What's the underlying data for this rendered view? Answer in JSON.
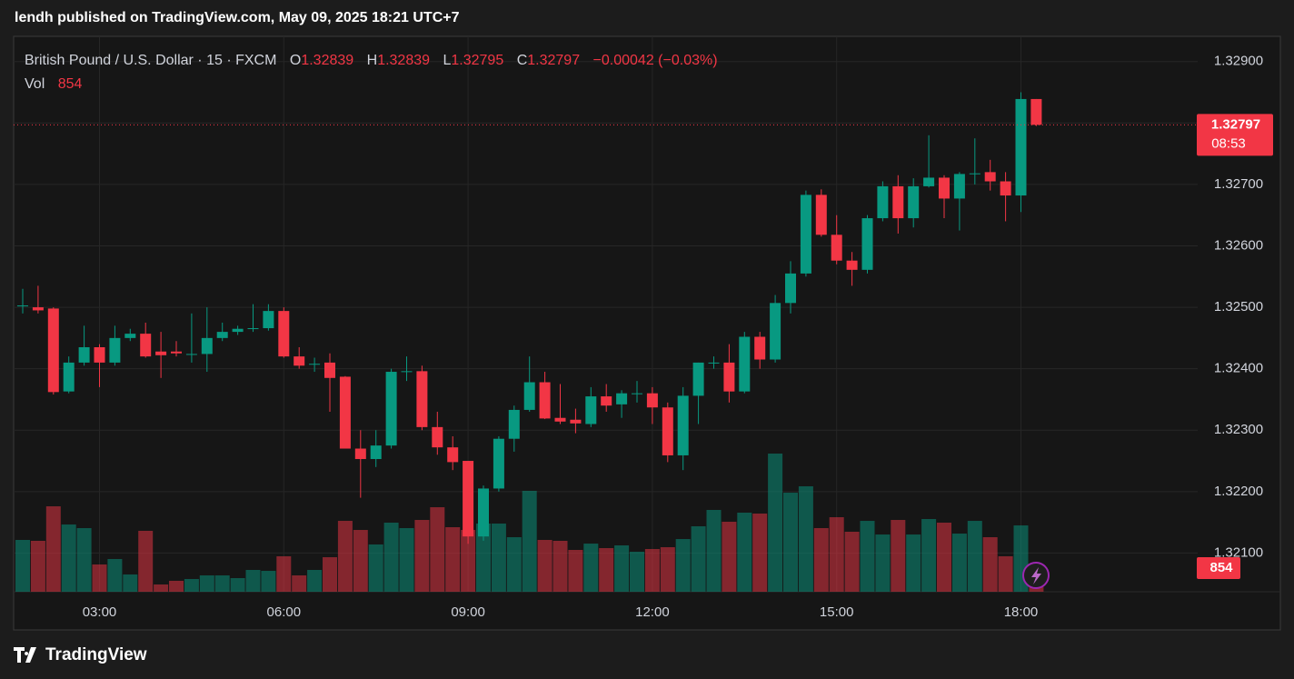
{
  "header": {
    "title": "lendh published on TradingView.com, May 09, 2025 18:21 UTC+7"
  },
  "legend": {
    "symbol": "British Pound / U.S. Dollar · 15 · FXCM",
    "o_key": "O",
    "o": "1.32839",
    "h_key": "H",
    "h": "1.32839",
    "l_key": "L",
    "l": "1.32795",
    "c_key": "C",
    "c": "1.32797",
    "change": "−0.00042 (−0.03%)",
    "vol_key": "Vol",
    "vol": "854"
  },
  "chart_data": {
    "type": "candlestick",
    "x": [
      "01:45",
      "02:00",
      "02:15",
      "02:30",
      "02:45",
      "03:00",
      "03:15",
      "03:30",
      "03:45",
      "04:00",
      "04:15",
      "04:30",
      "04:45",
      "05:00",
      "05:15",
      "05:30",
      "05:45",
      "06:00",
      "06:15",
      "06:30",
      "06:45",
      "07:00",
      "07:15",
      "07:30",
      "07:45",
      "08:00",
      "08:15",
      "08:30",
      "08:45",
      "09:00",
      "09:15",
      "09:30",
      "09:45",
      "10:00",
      "10:15",
      "10:30",
      "10:45",
      "11:00",
      "11:15",
      "11:30",
      "11:45",
      "12:00",
      "12:15",
      "12:30",
      "12:45",
      "13:00",
      "13:15",
      "13:30",
      "13:45",
      "14:00",
      "14:15",
      "14:30",
      "14:45",
      "15:00",
      "15:15",
      "15:30",
      "15:45",
      "16:00",
      "16:15",
      "16:30",
      "16:45",
      "17:00",
      "17:15",
      "17:30",
      "17:45",
      "18:00",
      "18:15"
    ],
    "xticks": [
      "03:00",
      "06:00",
      "09:00",
      "12:00",
      "15:00",
      "18:00"
    ],
    "open": [
      1.32503,
      1.325,
      1.32498,
      1.32363,
      1.3241,
      1.32435,
      1.3241,
      1.3245,
      1.32457,
      1.32428,
      1.32428,
      1.32424,
      1.32424,
      1.3245,
      1.3246,
      1.32465,
      1.32466,
      1.32494,
      1.3242,
      1.32408,
      1.3241,
      1.32387,
      1.3227,
      1.32253,
      1.32275,
      1.32395,
      1.32396,
      1.32305,
      1.32272,
      1.3225,
      1.32127,
      1.32205,
      1.32286,
      1.32333,
      1.32378,
      1.3232,
      1.32317,
      1.3231,
      1.32355,
      1.32342,
      1.3236,
      1.3236,
      1.32337,
      1.32259,
      1.32356,
      1.3241,
      1.3241,
      1.32363,
      1.32452,
      1.32415,
      1.32507,
      1.32555,
      1.32683,
      1.32618,
      1.32576,
      1.32561,
      1.32645,
      1.32697,
      1.32645,
      1.32697,
      1.32711,
      1.32677,
      1.32717,
      1.3272,
      1.32705,
      1.32682,
      1.32839
    ],
    "high": [
      1.3253,
      1.32535,
      1.325,
      1.3242,
      1.3247,
      1.3244,
      1.3247,
      1.32465,
      1.32475,
      1.3246,
      1.32445,
      1.3249,
      1.325,
      1.32475,
      1.3247,
      1.32505,
      1.32505,
      1.325,
      1.32435,
      1.32418,
      1.32425,
      1.32388,
      1.323,
      1.323,
      1.324,
      1.3242,
      1.32405,
      1.3233,
      1.3229,
      1.3225,
      1.3221,
      1.3229,
      1.3234,
      1.3242,
      1.32395,
      1.32375,
      1.32335,
      1.3237,
      1.32375,
      1.32365,
      1.3238,
      1.3237,
      1.32345,
      1.3237,
      1.3241,
      1.3242,
      1.3244,
      1.3246,
      1.3246,
      1.3252,
      1.32575,
      1.3269,
      1.32692,
      1.3265,
      1.3259,
      1.3265,
      1.32705,
      1.32715,
      1.3271,
      1.3278,
      1.32715,
      1.3272,
      1.32775,
      1.3274,
      1.3272,
      1.3285,
      1.32839
    ],
    "low": [
      1.3249,
      1.3249,
      1.32358,
      1.3236,
      1.32405,
      1.3237,
      1.32405,
      1.32445,
      1.32418,
      1.32385,
      1.3242,
      1.3241,
      1.32395,
      1.32445,
      1.32455,
      1.3246,
      1.32462,
      1.32418,
      1.324,
      1.32395,
      1.3233,
      1.3227,
      1.3219,
      1.3224,
      1.3227,
      1.3238,
      1.323,
      1.3226,
      1.32235,
      1.32115,
      1.3212,
      1.322,
      1.32265,
      1.3233,
      1.32318,
      1.3231,
      1.32295,
      1.32305,
      1.3233,
      1.3232,
      1.32345,
      1.3231,
      1.32248,
      1.32235,
      1.3231,
      1.324,
      1.32345,
      1.3236,
      1.324,
      1.3241,
      1.3249,
      1.3255,
      1.32615,
      1.3257,
      1.32535,
      1.32555,
      1.3264,
      1.3262,
      1.3263,
      1.32695,
      1.32645,
      1.32625,
      1.327,
      1.3269,
      1.3264,
      1.32655,
      1.32795
    ],
    "close": [
      1.32503,
      1.32495,
      1.32362,
      1.3241,
      1.32435,
      1.3241,
      1.3245,
      1.32457,
      1.3242,
      1.32422,
      1.32425,
      1.32424,
      1.3245,
      1.3246,
      1.32465,
      1.32466,
      1.32494,
      1.3242,
      1.32405,
      1.32408,
      1.32385,
      1.3227,
      1.32253,
      1.32275,
      1.32395,
      1.32396,
      1.32305,
      1.32272,
      1.32248,
      1.32127,
      1.32205,
      1.32286,
      1.32333,
      1.32378,
      1.32319,
      1.32314,
      1.32311,
      1.32355,
      1.3234,
      1.3236,
      1.3236,
      1.32337,
      1.32259,
      1.32356,
      1.3241,
      1.3241,
      1.32363,
      1.32452,
      1.32415,
      1.32507,
      1.32555,
      1.32683,
      1.32618,
      1.32576,
      1.32561,
      1.32645,
      1.32697,
      1.32645,
      1.32697,
      1.32711,
      1.32677,
      1.32717,
      1.32718,
      1.32705,
      1.32682,
      1.32839,
      1.32797
    ],
    "volume": [
      1870,
      1837,
      3083,
      2427,
      2296,
      984,
      1181,
      623,
      2198,
      262,
      394,
      459,
      590,
      590,
      492,
      787,
      754,
      1279,
      590,
      787,
      1246,
      2558,
      2230,
      1706,
      2493,
      2296,
      2591,
      3050,
      2329,
      2230,
      2460,
      2460,
      1968,
      3641,
      1870,
      1837,
      1509,
      1738,
      1574,
      1673,
      1443,
      1542,
      1607,
      1902,
      2362,
      2952,
      2526,
      2854,
      2821,
      4986,
      3575,
      3805,
      2296,
      2690,
      2165,
      2558,
      2066,
      2591,
      2066,
      2624,
      2493,
      2099,
      2558,
      1968,
      1279,
      2394,
      854
    ],
    "up_color": "#089981",
    "down_color": "#f23645",
    "ylim": [
      1.32037,
      1.32941
    ],
    "yticks": [
      {
        "value": 1.321,
        "label": "1.32100"
      },
      {
        "value": 1.322,
        "label": "1.32200"
      },
      {
        "value": 1.323,
        "label": "1.32300"
      },
      {
        "value": 1.324,
        "label": "1.32400"
      },
      {
        "value": 1.325,
        "label": "1.32500"
      },
      {
        "value": 1.326,
        "label": "1.32600"
      },
      {
        "value": 1.327,
        "label": "1.32700"
      },
      {
        "value": 1.328,
        "label": "1.32800"
      },
      {
        "value": 1.329,
        "label": "1.32900"
      }
    ],
    "grid": true,
    "last_price_label": "1.32797",
    "countdown": "08:53",
    "last_volume_label": "854"
  },
  "footer": {
    "brand": "TradingView"
  }
}
